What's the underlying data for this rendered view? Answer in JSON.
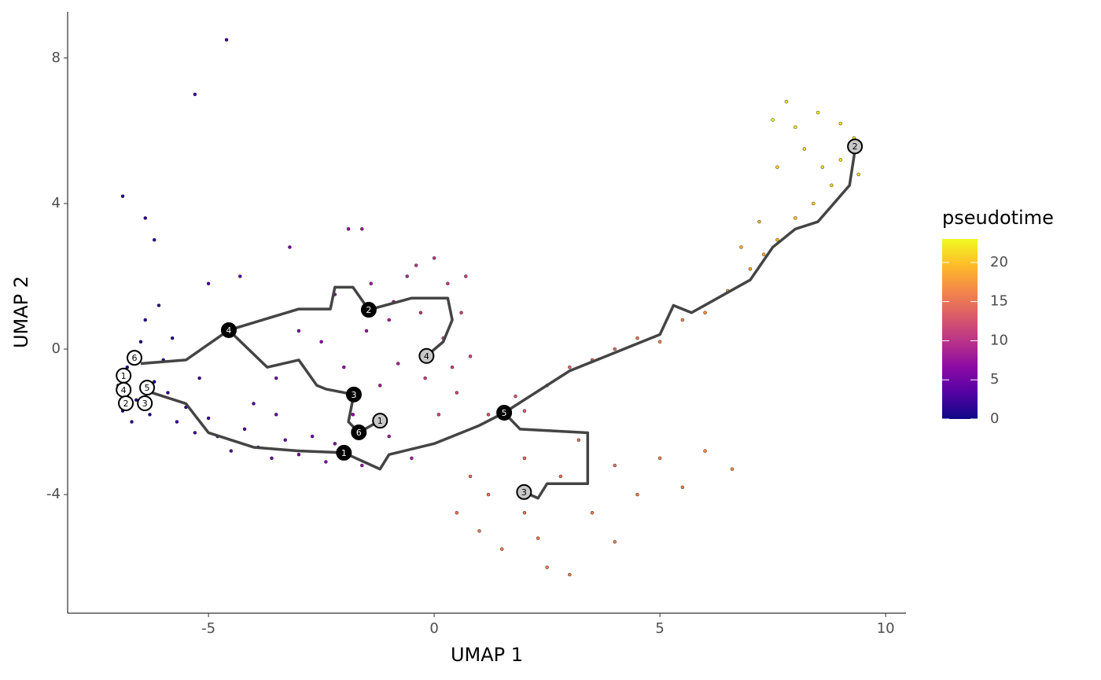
{
  "chart_data": {
    "type": "scatter",
    "xlabel": "UMAP 1",
    "ylabel": "UMAP 2",
    "xlim": [
      -8.12,
      10.45
    ],
    "ylim": [
      -7.26,
      9.27
    ],
    "xticks": [
      -5,
      0,
      5,
      10
    ],
    "yticks": [
      -4,
      0,
      4,
      8
    ],
    "colorbar": {
      "title": "pseudotime",
      "lim": [
        0,
        23
      ],
      "ticks": [
        0,
        5,
        10,
        15,
        20
      ],
      "colormap": [
        "#0d0887",
        "#5302a3",
        "#8b0aa5",
        "#b83289",
        "#db5c68",
        "#f48849",
        "#febd2a",
        "#f0f921"
      ]
    },
    "points": {
      "x": [
        -7,
        -6.8,
        -6.6,
        -6.3,
        -6.5,
        -6.2,
        -5.9,
        -5.7,
        -6.0,
        -5.5,
        -5.3,
        -5.0,
        -6.9,
        -6.4,
        -6.1,
        -5.8,
        -6.7,
        -5.2,
        -4.8,
        -4.5,
        -4.2,
        -3.9,
        -3.6,
        -3.3,
        -3.0,
        -2.7,
        -2.4,
        -2.2,
        -4.0,
        -3.5,
        -4.6,
        -5.3,
        -6.9,
        -6.4,
        -6.2,
        -5.0,
        -4.3,
        -3.2,
        -1.9,
        -1.6,
        -2.5,
        -2.0,
        -1.5,
        -1.2,
        -1.8,
        -1.0,
        -0.8,
        -1.4,
        -0.6,
        -1.0,
        -0.5,
        -1.6,
        -2.2,
        -3.0,
        -3.5,
        -0.9,
        0,
        0.3,
        0.6,
        0.2,
        -0.2,
        0.5,
        0.8,
        0.1,
        -0.4,
        0.7,
        0.4,
        -0.3,
        1.2,
        1.8,
        2.5,
        3.0,
        3.5,
        4.0,
        4.5,
        2.0,
        0.5,
        1.0,
        1.5,
        2.0,
        2.5,
        3.0,
        2.0,
        2.8,
        3.5,
        4.0,
        4.5,
        5.0,
        5.5,
        6.0,
        6.6,
        4.0,
        3.2,
        1.2,
        0.8,
        2.3,
        5,
        5.5,
        6,
        6.5,
        7,
        7.3,
        7.6,
        8.0,
        8.4,
        8.8,
        9.0,
        9.3,
        9.0,
        8.5,
        7.8,
        7.5,
        8.2,
        7.6,
        8.6,
        7.2,
        6.8,
        9.4,
        8.0
      ],
      "y": [
        -1,
        -0.5,
        -1.4,
        -1.8,
        0.2,
        -0.9,
        -1.2,
        -2.0,
        -0.3,
        -1.6,
        -2.3,
        -1.9,
        -1.7,
        0.8,
        1.2,
        0.3,
        -2.0,
        -0.8,
        -2.4,
        -2.8,
        -2.2,
        -2.7,
        -3.0,
        -2.5,
        -2.9,
        -2.4,
        -3.1,
        -2.6,
        -1.5,
        -1.8,
        8.5,
        7.0,
        4.2,
        3.6,
        3.0,
        1.8,
        2.0,
        2.8,
        3.3,
        3.3,
        0.2,
        -0.5,
        0.5,
        -1.0,
        -1.8,
        0.8,
        -0.4,
        1.8,
        2.0,
        -2.4,
        -3.0,
        -3.2,
        1.5,
        0.5,
        -0.8,
        1.3,
        2.5,
        1.8,
        1.0,
        0.3,
        -0.8,
        -1.2,
        -0.2,
        -1.8,
        2.3,
        2.0,
        -0.5,
        1.0,
        -1.8,
        -1.3,
        -1.0,
        -0.5,
        -0.3,
        0,
        0.3,
        -1.7,
        -4.5,
        -5.0,
        -5.5,
        -4.5,
        -6.0,
        -6.2,
        -3.0,
        -3.5,
        -4.5,
        -3.2,
        -4.0,
        -3.0,
        -3.8,
        -2.8,
        -3.3,
        -5.3,
        -2.5,
        -4.0,
        -3.5,
        -5.2,
        0.2,
        0.8,
        1.0,
        1.6,
        2.2,
        2.6,
        3.0,
        3.6,
        4.0,
        4.5,
        5.2,
        5.8,
        6.2,
        6.5,
        6.8,
        6.3,
        5.5,
        5.0,
        5.0,
        3.5,
        2.8,
        4.8,
        6.1
      ],
      "pseudotime": [
        0.3,
        0.5,
        0.8,
        1.2,
        0.6,
        1.0,
        1.5,
        2.2,
        1.1,
        2.0,
        2.8,
        2.5,
        0.9,
        1.5,
        1.8,
        1.6,
        1.3,
        2.3,
        3.2,
        3.6,
        3.4,
        4.0,
        4.4,
        4.6,
        5.0,
        5.3,
        5.8,
        6.0,
        3.5,
        4.2,
        2.0,
        2.5,
        1.0,
        1.5,
        1.7,
        3.0,
        3.5,
        5.0,
        7.0,
        7.5,
        6.5,
        7.0,
        7.5,
        8.0,
        7.0,
        8.5,
        8.8,
        8.0,
        9.0,
        8.0,
        8.5,
        7.5,
        7.0,
        5.5,
        5.0,
        8.5,
        10.5,
        10.8,
        11,
        11.2,
        11,
        11.5,
        11.8,
        11.5,
        10.5,
        11,
        11.3,
        10.5,
        12.5,
        13,
        13.5,
        14,
        14.3,
        14.8,
        15.2,
        13,
        15,
        15.3,
        15.5,
        15.2,
        15.8,
        16,
        14.2,
        14.8,
        15.5,
        15,
        15.8,
        16,
        16.3,
        16.5,
        16.8,
        16,
        14.6,
        15,
        14.8,
        15.6,
        16,
        16.5,
        17,
        18,
        18.5,
        19,
        19.5,
        20,
        20.5,
        21,
        21.5,
        22,
        22.5,
        22.8,
        23,
        22.5,
        21.5,
        21,
        21.5,
        19.5,
        19,
        21.5,
        22
      ]
    },
    "trajectory": [
      {
        "x": [
          -6.5,
          -5.5,
          -4.55,
          -3,
          -2.3,
          -2.2,
          -1.8,
          -1.45,
          -0.5,
          0.3,
          0.4,
          0.2,
          -0.17
        ],
        "y": [
          -0.4,
          -0.3,
          0.52,
          1.1,
          1.1,
          1.7,
          1.7,
          1.08,
          1.4,
          1.4,
          0.8,
          0.2,
          -0.19
        ]
      },
      {
        "x": [
          -4.55,
          -3.7,
          -3,
          -2.6,
          -2.4,
          -1.78,
          -1.9,
          -1.67,
          -1.2
        ],
        "y": [
          0.52,
          -0.5,
          -0.3,
          -1.0,
          -1.1,
          -1.25,
          -2.0,
          -2.29,
          -1.97
        ]
      },
      {
        "x": [
          -6.5,
          -5.5,
          -5,
          -4,
          -3,
          -2,
          -1.2,
          -1,
          0,
          1,
          1.55
        ],
        "y": [
          -1.1,
          -1.5,
          -2.3,
          -2.7,
          -2.8,
          -2.85,
          -3.3,
          -2.9,
          -2.6,
          -2.1,
          -1.75
        ]
      },
      {
        "x": [
          1.55,
          1.9,
          3.4,
          3.4,
          2.5,
          2.3,
          1.99
        ],
        "y": [
          -1.75,
          -2.2,
          -2.3,
          -3.7,
          -3.7,
          -4.1,
          -3.93
        ]
      },
      {
        "x": [
          1.55,
          3,
          5,
          5.3,
          5.7,
          7,
          7.5,
          8,
          8.5,
          9.2,
          9.3,
          9.32
        ],
        "y": [
          -1.75,
          -0.6,
          0.4,
          1.2,
          1.0,
          1.9,
          2.8,
          3.3,
          3.5,
          4.5,
          5.3,
          5.57
        ]
      }
    ],
    "nodes": {
      "x": [
        -4.55,
        -1.45,
        -1.78,
        -1.67,
        -2.0,
        1.55,
        -0.17,
        -1.2,
        1.99,
        9.32,
        -6.88,
        -6.88,
        -6.83,
        -6.41,
        -6.36,
        -6.64
      ],
      "y": [
        0.52,
        1.08,
        -1.25,
        -2.29,
        -2.85,
        -1.75,
        -0.19,
        -1.97,
        -3.93,
        5.57,
        -0.73,
        -1.12,
        -1.49,
        -1.49,
        -1.06,
        -0.24
      ],
      "labels": [
        "4",
        "2",
        "3",
        "6",
        "1",
        "5",
        "4",
        "1",
        "3",
        "2",
        "1",
        "4",
        "2",
        "3",
        "5",
        "6"
      ],
      "fill": [
        "#000000",
        "#000000",
        "#000000",
        "#000000",
        "#000000",
        "#000000",
        "#c8c8c8",
        "#c8c8c8",
        "#c8c8c8",
        "#c8c8c8",
        "#ffffff",
        "#ffffff",
        "#ffffff",
        "#ffffff",
        "#ffffff",
        "#ffffff"
      ],
      "text_color": [
        "#ffffff",
        "#ffffff",
        "#ffffff",
        "#ffffff",
        "#ffffff",
        "#ffffff",
        "#000000",
        "#000000",
        "#000000",
        "#000000",
        "#000000",
        "#000000",
        "#000000",
        "#000000",
        "#000000",
        "#000000"
      ]
    }
  }
}
